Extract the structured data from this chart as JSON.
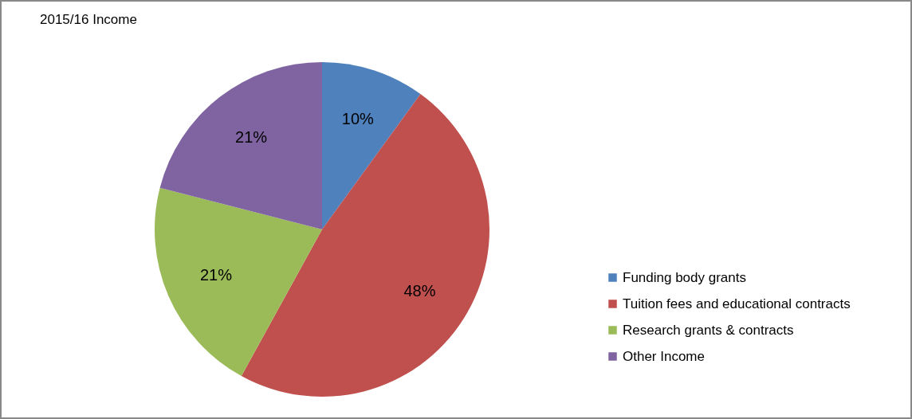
{
  "chart_data": {
    "type": "pie",
    "title": "2015/16 Income",
    "categories": [
      "Funding body grants",
      "Tuition fees and educational contracts",
      "Research grants & contracts",
      "Other Income"
    ],
    "values": [
      10,
      48,
      21,
      21
    ],
    "value_labels": [
      "10%",
      "48%",
      "21%",
      "21%"
    ],
    "colors": [
      "#4f81bd",
      "#c0504d",
      "#9bbb59",
      "#8064a2"
    ],
    "legend": "right"
  }
}
